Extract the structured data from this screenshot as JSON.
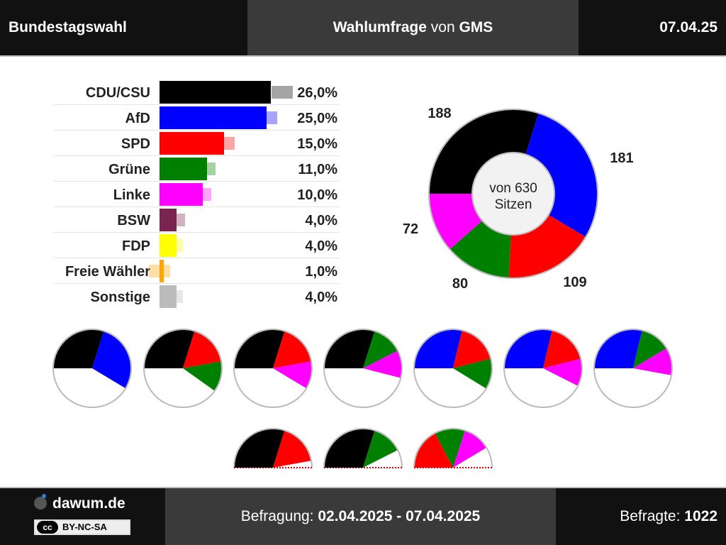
{
  "header": {
    "left_title": "Bundestagswahl",
    "survey_word": "Wahlumfrage",
    "von": "von",
    "institute": "GMS",
    "date": "07.04.25"
  },
  "footer": {
    "site": "dawum.de",
    "license": "BY-NC-SA",
    "license_icon": "cc",
    "survey_label": "Befragung:",
    "survey_period": "02.04.2025 - 07.04.2025",
    "respondents_label": "Befragte:",
    "respondents": "1022"
  },
  "seats_center": {
    "line1": "von 630",
    "line2": "Sitzen"
  },
  "chart_data": [
    {
      "type": "bar",
      "orientation": "horizontal",
      "categories": [
        "CDU/CSU",
        "AfD",
        "SPD",
        "Grüne",
        "Linke",
        "BSW",
        "FDP",
        "Freie Wähler",
        "Sonstige"
      ],
      "values": [
        26.0,
        25.0,
        15.0,
        11.0,
        10.0,
        4.0,
        4.0,
        1.0,
        4.0
      ],
      "labels": [
        "26,0%",
        "25,0%",
        "15,0%",
        "11,0%",
        "10,0%",
        "4,0%",
        "4,0%",
        "1,0%",
        "4,0%"
      ],
      "previous_values": [
        31.0,
        27.5,
        17.5,
        13.0,
        12.0,
        6.0,
        5.5,
        2.5,
        5.5
      ],
      "colors": [
        "#000000",
        "#0000ff",
        "#ff0000",
        "#008000",
        "#ff00ff",
        "#7b2451",
        "#ffff00",
        "#ffa500",
        "#bbbbbb"
      ]
    },
    {
      "type": "pie",
      "style": "donut",
      "slices": [
        {
          "party": "CDU/CSU",
          "seats": 188,
          "label": "188",
          "color": "#000000"
        },
        {
          "party": "AfD",
          "seats": 181,
          "label": "181",
          "color": "#0000ff"
        },
        {
          "party": "SPD",
          "seats": 109,
          "label": "109",
          "color": "#ff0000"
        },
        {
          "party": "Grüne",
          "seats": 80,
          "label": "80",
          "color": "#008000"
        },
        {
          "party": "Linke",
          "seats": 72,
          "label": "72",
          "color": "#ff00ff"
        }
      ],
      "total": 630
    },
    {
      "type": "pie",
      "style": "coalitions",
      "total": 630,
      "coalitions": [
        {
          "parties": [
            "CDU/CSU",
            "AfD"
          ],
          "seats": [
            188,
            181
          ]
        },
        {
          "parties": [
            "CDU/CSU",
            "SPD",
            "Grüne"
          ],
          "seats": [
            188,
            109,
            80
          ]
        },
        {
          "parties": [
            "CDU/CSU",
            "SPD",
            "Linke"
          ],
          "seats": [
            188,
            109,
            72
          ]
        },
        {
          "parties": [
            "CDU/CSU",
            "Grüne",
            "Linke"
          ],
          "seats": [
            188,
            80,
            72
          ]
        },
        {
          "parties": [
            "AfD",
            "SPD",
            "Grüne"
          ],
          "seats": [
            181,
            109,
            80
          ]
        },
        {
          "parties": [
            "AfD",
            "SPD",
            "Linke"
          ],
          "seats": [
            181,
            109,
            72
          ]
        },
        {
          "parties": [
            "AfD",
            "Grüne",
            "Linke"
          ],
          "seats": [
            181,
            80,
            72
          ]
        },
        {
          "parties": [
            "CDU/CSU",
            "SPD"
          ],
          "seats": [
            188,
            109
          ]
        },
        {
          "parties": [
            "CDU/CSU",
            "Grüne"
          ],
          "seats": [
            188,
            80
          ]
        },
        {
          "parties": [
            "SPD",
            "Grüne",
            "Linke"
          ],
          "seats": [
            109,
            80,
            72
          ]
        }
      ]
    }
  ]
}
